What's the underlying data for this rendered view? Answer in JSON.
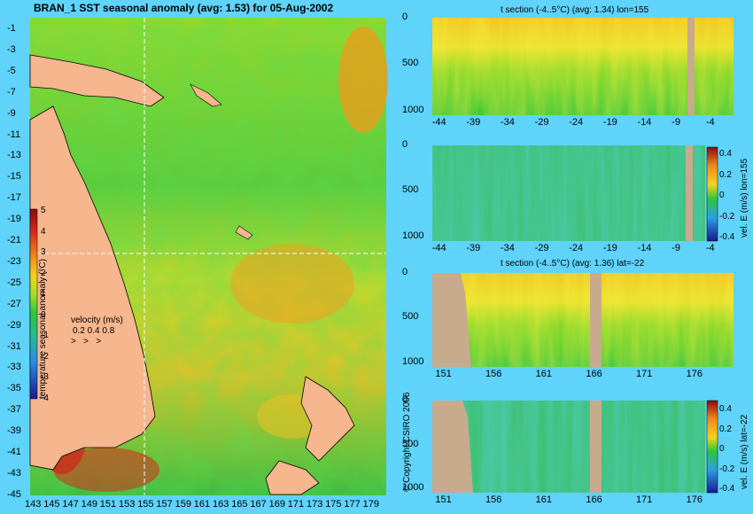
{
  "main_map": {
    "title": "BRAN_1 SST seasonal anomaly (avg: 1.53) for 05-Aug-2002",
    "y_ticks": [
      "-1",
      "-3",
      "-5",
      "-7",
      "-9",
      "-11",
      "-13",
      "-15",
      "-17",
      "-19",
      "-21",
      "-23",
      "-25",
      "-27",
      "-29",
      "-31",
      "-33",
      "-35",
      "-37",
      "-39",
      "-41",
      "-43",
      "-45"
    ],
    "x_ticks": [
      "143",
      "145",
      "147",
      "149",
      "151",
      "153",
      "155",
      "157",
      "159",
      "161",
      "163",
      "165",
      "167",
      "169",
      "171",
      "173",
      "175",
      "177",
      "179"
    ],
    "colorbar_ticks": [
      "5",
      "4",
      "3",
      "2",
      "1",
      "0",
      "-1",
      "-2",
      "-3",
      "-4"
    ],
    "colorbar_label": "temperature seasonal anomaly (°C)",
    "velocity_label": "velocity (m/s)",
    "velocity_scale": [
      "0.2",
      "0.4",
      "0.8"
    ],
    "copyright": "© Copyright CSIRO 2006",
    "crosshair": {
      "lon": 155,
      "lat": -22
    }
  },
  "colors": {
    "background": "#5fd3f9",
    "land": "#f6b68e",
    "section_land": "#c8aa8c",
    "anomaly_scale": [
      "#1b1a8f",
      "#1e5ad0",
      "#2aa0e0",
      "#26b89a",
      "#2ec53a",
      "#82d82a",
      "#d9e82a",
      "#f4d21e",
      "#f39a18",
      "#e8531a",
      "#c8141e",
      "#8c0a10"
    ]
  },
  "chart_data": [
    {
      "type": "heatmap",
      "title": "t section (-4..5°C) (avg: 1.34) lon=155",
      "x_ticks": [
        "-44",
        "-39",
        "-34",
        "-29",
        "-24",
        "-19",
        "-14",
        "-9",
        "-4"
      ],
      "y_ticks": [
        "0",
        "500",
        "1000"
      ],
      "xlim": [
        -45,
        -1
      ],
      "ylim": [
        1050,
        0
      ]
    },
    {
      "type": "heatmap",
      "title": "",
      "x_ticks": [
        "-44",
        "-39",
        "-34",
        "-29",
        "-24",
        "-19",
        "-14",
        "-9",
        "-4"
      ],
      "y_ticks": [
        "0",
        "500",
        "1000"
      ],
      "colorbar_ticks": [
        "0.4",
        "0.2",
        "0",
        "-0.2",
        "-0.4"
      ],
      "colorbar_label": "vel. E (m/s) lon=155",
      "xlim": [
        -45,
        -1
      ],
      "ylim": [
        1050,
        0
      ]
    },
    {
      "type": "heatmap",
      "title": "t section (-4..5°C) (avg: 1.36) lat=-22",
      "x_ticks": [
        "151",
        "156",
        "161",
        "166",
        "171",
        "176"
      ],
      "y_ticks": [
        "0",
        "500",
        "1000"
      ],
      "xlim": [
        150,
        180
      ],
      "ylim": [
        1050,
        0
      ]
    },
    {
      "type": "heatmap",
      "title": "",
      "x_ticks": [
        "151",
        "156",
        "161",
        "166",
        "171",
        "176"
      ],
      "y_ticks": [
        "0",
        "500",
        "1000"
      ],
      "colorbar_ticks": [
        "0.4",
        "0.2",
        "0",
        "-0.2",
        "-0.4"
      ],
      "colorbar_label": "vel. E (m/s) lat=-22",
      "xlim": [
        150,
        180
      ],
      "ylim": [
        1050,
        0
      ]
    }
  ]
}
